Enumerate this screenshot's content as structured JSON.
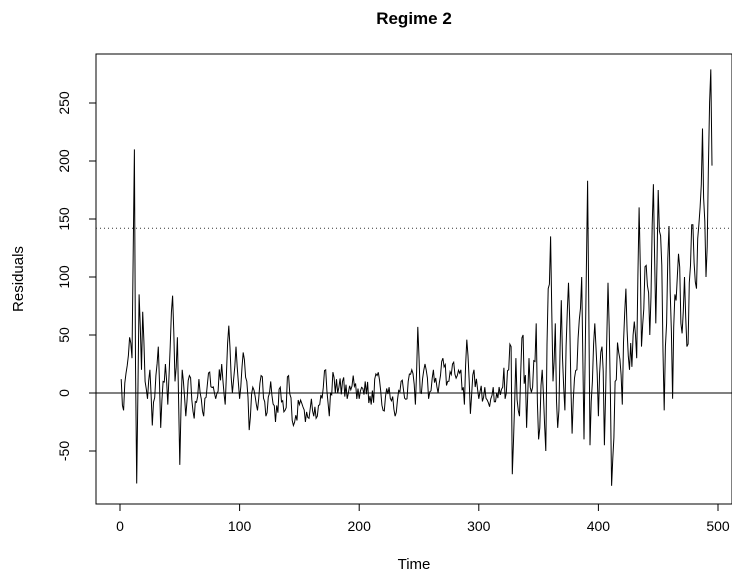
{
  "chart_data": {
    "type": "line",
    "title": "Regime 2",
    "xlabel": "Time",
    "ylabel": "Residuals",
    "xlim": [
      -20,
      520
    ],
    "ylim": [
      -95,
      290
    ],
    "x_ticks": [
      "0",
      "100",
      "200",
      "300",
      "400",
      "500"
    ],
    "y_ticks": [
      "-50",
      "0",
      "50",
      "100",
      "150",
      "200",
      "250"
    ],
    "reference_lines": {
      "solid_y": 0,
      "dotted_y": 142
    },
    "grid": false,
    "legend": "none",
    "line_color": "#000000",
    "n_points": 495,
    "anchors": [
      [
        1,
        12
      ],
      [
        3,
        -15
      ],
      [
        5,
        17
      ],
      [
        8,
        48
      ],
      [
        10,
        30
      ],
      [
        12,
        210
      ],
      [
        13,
        25
      ],
      [
        14,
        -78
      ],
      [
        16,
        85
      ],
      [
        18,
        20
      ],
      [
        19,
        70
      ],
      [
        21,
        10
      ],
      [
        23,
        -5
      ],
      [
        25,
        20
      ],
      [
        27,
        -28
      ],
      [
        30,
        15
      ],
      [
        32,
        40
      ],
      [
        34,
        -30
      ],
      [
        36,
        10
      ],
      [
        38,
        25
      ],
      [
        40,
        -10
      ],
      [
        42,
        40
      ],
      [
        44,
        84
      ],
      [
        46,
        10
      ],
      [
        48,
        48
      ],
      [
        50,
        -62
      ],
      [
        52,
        20
      ],
      [
        55,
        -20
      ],
      [
        58,
        15
      ],
      [
        62,
        -22
      ],
      [
        66,
        12
      ],
      [
        70,
        -20
      ],
      [
        75,
        18
      ],
      [
        80,
        -5
      ],
      [
        85,
        25
      ],
      [
        88,
        -10
      ],
      [
        91,
        58
      ],
      [
        94,
        0
      ],
      [
        97,
        40
      ],
      [
        100,
        -5
      ],
      [
        103,
        35
      ],
      [
        106,
        10
      ],
      [
        108,
        -32
      ],
      [
        111,
        5
      ],
      [
        115,
        -15
      ],
      [
        118,
        15
      ],
      [
        122,
        -20
      ],
      [
        126,
        10
      ],
      [
        130,
        -25
      ],
      [
        134,
        5
      ],
      [
        138,
        -15
      ],
      [
        141,
        15
      ],
      [
        145,
        -28
      ],
      [
        150,
        -10
      ],
      [
        155,
        -25
      ],
      [
        160,
        -5
      ],
      [
        165,
        -20
      ],
      [
        170,
        5
      ],
      [
        172,
        20
      ],
      [
        175,
        -20
      ],
      [
        178,
        18
      ],
      [
        182,
        0
      ],
      [
        186,
        10
      ],
      [
        190,
        -5
      ],
      [
        195,
        15
      ],
      [
        200,
        -5
      ],
      [
        205,
        10
      ],
      [
        210,
        -10
      ],
      [
        215,
        15
      ],
      [
        220,
        -15
      ],
      [
        225,
        5
      ],
      [
        230,
        -20
      ],
      [
        235,
        10
      ],
      [
        240,
        -5
      ],
      [
        244,
        20
      ],
      [
        247,
        -10
      ],
      [
        249,
        57
      ],
      [
        251,
        0
      ],
      [
        255,
        25
      ],
      [
        258,
        -5
      ],
      [
        262,
        20
      ],
      [
        266,
        0
      ],
      [
        270,
        30
      ],
      [
        274,
        10
      ],
      [
        278,
        25
      ],
      [
        282,
        15
      ],
      [
        285,
        20
      ],
      [
        288,
        -10
      ],
      [
        290,
        46
      ],
      [
        293,
        -18
      ],
      [
        296,
        20
      ],
      [
        300,
        -5
      ],
      [
        305,
        5
      ],
      [
        310,
        -5
      ],
      [
        315,
        0
      ],
      [
        320,
        5
      ],
      [
        322,
        -5
      ],
      [
        325,
        20
      ],
      [
        327,
        40
      ],
      [
        328,
        -70
      ],
      [
        331,
        30
      ],
      [
        334,
        -20
      ],
      [
        337,
        50
      ],
      [
        340,
        -30
      ],
      [
        342,
        30
      ],
      [
        345,
        5
      ],
      [
        348,
        60
      ],
      [
        350,
        -40
      ],
      [
        353,
        20
      ],
      [
        356,
        -50
      ],
      [
        358,
        90
      ],
      [
        360,
        135
      ],
      [
        362,
        10
      ],
      [
        364,
        60
      ],
      [
        366,
        -30
      ],
      [
        369,
        80
      ],
      [
        372,
        -15
      ],
      [
        375,
        95
      ],
      [
        378,
        -35
      ],
      [
        382,
        20
      ],
      [
        386,
        100
      ],
      [
        388,
        -40
      ],
      [
        391,
        183
      ],
      [
        393,
        -45
      ],
      [
        395,
        10
      ],
      [
        397,
        60
      ],
      [
        400,
        -20
      ],
      [
        403,
        40
      ],
      [
        405,
        -45
      ],
      [
        408,
        95
      ],
      [
        411,
        -80
      ],
      [
        414,
        10
      ],
      [
        417,
        35
      ],
      [
        420,
        -10
      ],
      [
        423,
        90
      ],
      [
        426,
        20
      ],
      [
        429,
        50
      ],
      [
        432,
        30
      ],
      [
        434,
        160
      ],
      [
        436,
        40
      ],
      [
        440,
        110
      ],
      [
        443,
        50
      ],
      [
        446,
        180
      ],
      [
        448,
        60
      ],
      [
        450,
        175
      ],
      [
        453,
        110
      ],
      [
        455,
        -15
      ],
      [
        457,
        60
      ],
      [
        459,
        144
      ],
      [
        462,
        -5
      ],
      [
        464,
        85
      ],
      [
        467,
        120
      ],
      [
        469,
        60
      ],
      [
        472,
        100
      ],
      [
        474,
        40
      ],
      [
        477,
        110
      ],
      [
        479,
        145
      ],
      [
        482,
        90
      ],
      [
        485,
        160
      ],
      [
        487,
        228
      ],
      [
        490,
        100
      ],
      [
        492,
        195
      ],
      [
        494,
        279
      ],
      [
        495,
        196
      ]
    ]
  }
}
